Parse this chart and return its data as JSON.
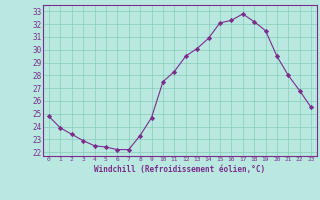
{
  "x": [
    0,
    1,
    2,
    3,
    4,
    5,
    6,
    7,
    8,
    9,
    10,
    11,
    12,
    13,
    14,
    15,
    16,
    17,
    18,
    19,
    20,
    21,
    22,
    23
  ],
  "y": [
    24.8,
    23.9,
    23.4,
    22.9,
    22.5,
    22.4,
    22.2,
    22.2,
    23.3,
    24.7,
    27.5,
    28.3,
    29.5,
    30.1,
    30.9,
    32.1,
    32.3,
    32.8,
    32.2,
    31.5,
    29.5,
    28.0,
    26.8,
    25.5
  ],
  "line_color": "#7b2d8b",
  "marker": "D",
  "marker_size": 2.2,
  "bg_color": "#b8e8e0",
  "grid_color": "#88ccbb",
  "ylabel_ticks": [
    22,
    23,
    24,
    25,
    26,
    27,
    28,
    29,
    30,
    31,
    32,
    33
  ],
  "xlabel_ticks": [
    0,
    1,
    2,
    3,
    4,
    5,
    6,
    7,
    8,
    9,
    10,
    11,
    12,
    13,
    14,
    15,
    16,
    17,
    18,
    19,
    20,
    21,
    22,
    23
  ],
  "xlabel": "Windchill (Refroidissement éolien,°C)",
  "ylim": [
    21.7,
    33.5
  ],
  "xlim": [
    -0.5,
    23.5
  ],
  "spine_color": "#7b2d8b"
}
